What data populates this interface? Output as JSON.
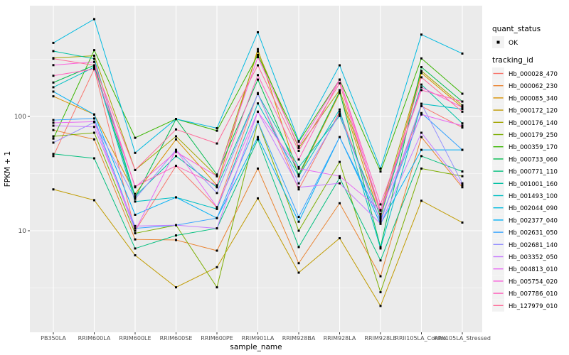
{
  "figure": {
    "y_axis_title": "FPKM + 1",
    "x_axis_title": "sample_name",
    "y_tick_labels": [
      "100",
      "10"
    ]
  },
  "legend": {
    "quant_status": {
      "title": "quant_status",
      "items": [
        {
          "label": "OK",
          "symbol": "black-square-point"
        }
      ]
    },
    "tracking": {
      "title": "tracking_id"
    }
  },
  "colors": {
    "panel_background": "#EBEBEB",
    "gridline": "#FFFFFF",
    "point": "#000000",
    "tick_text": "#4D4D4D",
    "legend_key_background": "#F2F2F2"
  },
  "chart_data": {
    "type": "line",
    "xlabel": "sample_name",
    "ylabel": "FPKM + 1",
    "yscale": "log10",
    "ylim": [
      1.3,
      930
    ],
    "yticks": [
      100,
      10
    ],
    "minor_gridlines": [
      3.162,
      31.62,
      316.2
    ],
    "grid": true,
    "legend_position": "right",
    "point_shape": "filled-square",
    "x": [
      "PB350LA",
      "RRIM600LA",
      "RRIM600LE",
      "RRIM600SE",
      "RRIM600PE",
      "RRIM901LA",
      "RRIM928BA",
      "RRIM928LA",
      "RRIM928LE",
      "RRII105LA_Control",
      "RRII105LA_Stressed"
    ],
    "series": [
      {
        "name": "Hb_000028_470",
        "color": "#F8766D",
        "values": [
          45,
          260,
          10,
          37,
          16,
          160,
          23,
          110,
          12,
          123,
          80
        ]
      },
      {
        "name": "Hb_000062_230",
        "color": "#EA8331",
        "values": [
          76,
          63,
          8.4,
          8.3,
          6.7,
          35,
          5.2,
          17.4,
          4.0,
          66,
          24
        ]
      },
      {
        "name": "Hb_000085_340",
        "color": "#D89000",
        "values": [
          150,
          104,
          21,
          63,
          25,
          388,
          30,
          160,
          13,
          240,
          120
        ]
      },
      {
        "name": "Hb_000172_120",
        "color": "#C09B00",
        "values": [
          23,
          18.5,
          6.1,
          3.2,
          4.8,
          19.2,
          4.3,
          8.6,
          2.2,
          18.3,
          11.8
        ]
      },
      {
        "name": "Hb_000176_140",
        "color": "#A3A500",
        "values": [
          324,
          340,
          34,
          67,
          30,
          370,
          53,
          170,
          15,
          250,
          125
        ]
      },
      {
        "name": "Hb_000179_250",
        "color": "#7CAE00",
        "values": [
          67,
          72,
          9.5,
          11.2,
          3.2,
          90,
          10,
          40,
          2.9,
          35,
          30
        ]
      },
      {
        "name": "Hb_000359_170",
        "color": "#39B600",
        "values": [
          64,
          380,
          65,
          95,
          75,
          345,
          60,
          210,
          33,
          322,
          158
        ]
      },
      {
        "name": "Hb_000733_060",
        "color": "#00BB4E",
        "values": [
          198,
          280,
          19.5,
          95,
          31,
          210,
          31,
          165,
          7.2,
          270,
          135
        ]
      },
      {
        "name": "Hb_000771_110",
        "color": "#00BF7D",
        "values": [
          47,
          43,
          7.0,
          9.1,
          10.5,
          63,
          7.2,
          29,
          5.5,
          45,
          33
        ]
      },
      {
        "name": "Hb_001001_160",
        "color": "#00C1A3",
        "values": [
          373,
          320,
          20,
          45,
          24,
          157,
          36,
          101,
          13.5,
          190,
          87
        ]
      },
      {
        "name": "Hb_001493_100",
        "color": "#00BFC4",
        "values": [
          180,
          270,
          18,
          19.6,
          15.5,
          130,
          30,
          115,
          7.0,
          129,
          116
        ]
      },
      {
        "name": "Hb_002044_090",
        "color": "#00BAE0",
        "values": [
          440,
          710,
          48,
          95,
          79,
          545,
          61,
          280,
          35,
          520,
          355
        ]
      },
      {
        "name": "Hb_002377_040",
        "color": "#00B0F6",
        "values": [
          165,
          104,
          13.8,
          19.6,
          12.9,
          66,
          12,
          66,
          11.5,
          51,
          51
        ]
      },
      {
        "name": "Hb_002631_050",
        "color": "#35A2FF",
        "values": [
          93,
          96,
          10.5,
          11.2,
          12.9,
          90,
          13.2,
          66,
          12.5,
          107,
          51
        ]
      },
      {
        "name": "Hb_002681_140",
        "color": "#9590FF",
        "values": [
          59,
          89,
          19,
          51,
          21.4,
          157,
          26,
          105,
          12,
          129,
          26
        ]
      },
      {
        "name": "Hb_003352_050",
        "color": "#C77CFF",
        "values": [
          83,
          81,
          11,
          11.2,
          10.5,
          110,
          24,
          26,
          11.5,
          72,
          25
        ]
      },
      {
        "name": "Hb_004813_010",
        "color": "#E76BF3",
        "values": [
          88,
          90,
          10,
          51,
          16.1,
          110,
          35,
          30,
          15.2,
          104,
          83
        ]
      },
      {
        "name": "Hb_005754_020",
        "color": "#FA62DB",
        "values": [
          281,
          300,
          24,
          49,
          30,
          330,
          55,
          210,
          15,
          180,
          120
        ]
      },
      {
        "name": "Hb_007786_010",
        "color": "#FF62BC",
        "values": [
          227,
          260,
          24.4,
          37,
          25,
          230,
          42,
          210,
          17,
          170,
          135
        ]
      },
      {
        "name": "Hb_127979_010",
        "color": "#FF6A98",
        "values": [
          320,
          280,
          34,
          77,
          58,
          280,
          50,
          195,
          14,
          220,
          110
        ]
      }
    ]
  }
}
